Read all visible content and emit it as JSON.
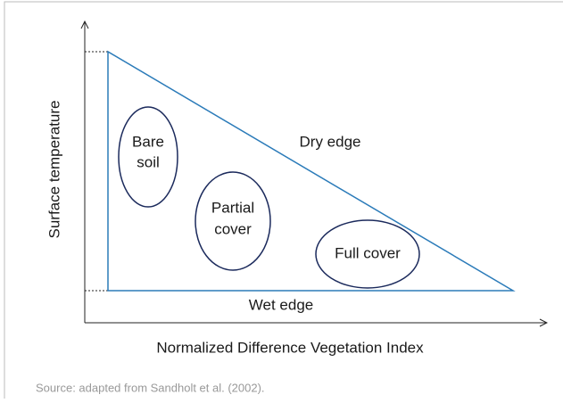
{
  "y_axis_label": "Surface temperature",
  "x_axis_label": "Normalized Difference Vegetation Index",
  "edges": {
    "dry": "Dry edge",
    "wet": "Wet edge"
  },
  "regions": [
    {
      "lines": [
        "Bare",
        "soil"
      ]
    },
    {
      "lines": [
        "Partial",
        "cover"
      ]
    },
    {
      "lines": [
        "Full cover"
      ]
    }
  ],
  "source": "Source: adapted from Sandholt et al. (2002)."
}
